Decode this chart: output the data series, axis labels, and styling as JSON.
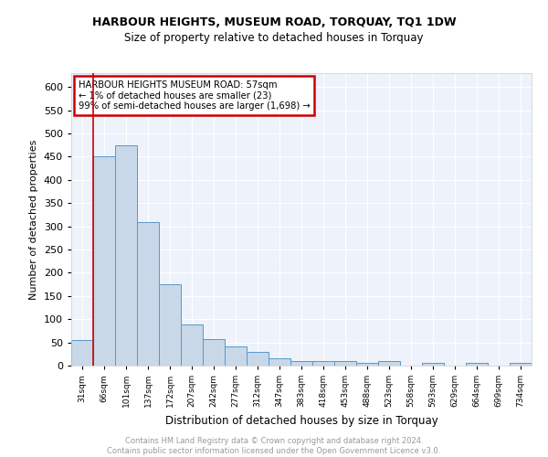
{
  "title1": "HARBOUR HEIGHTS, MUSEUM ROAD, TORQUAY, TQ1 1DW",
  "title2": "Size of property relative to detached houses in Torquay",
  "xlabel": "Distribution of detached houses by size in Torquay",
  "ylabel": "Number of detached properties",
  "bar_values": [
    55,
    450,
    475,
    310,
    175,
    88,
    58,
    42,
    30,
    15,
    10,
    10,
    10,
    5,
    10,
    0,
    5,
    0,
    5,
    0,
    5
  ],
  "x_labels": [
    "31sqm",
    "66sqm",
    "101sqm",
    "137sqm",
    "172sqm",
    "207sqm",
    "242sqm",
    "277sqm",
    "312sqm",
    "347sqm",
    "383sqm",
    "418sqm",
    "453sqm",
    "488sqm",
    "523sqm",
    "558sqm",
    "593sqm",
    "629sqm",
    "664sqm",
    "699sqm",
    "734sqm"
  ],
  "bar_color": "#c8d8e8",
  "bar_edge_color": "#5599cc",
  "background_color": "#eef2fb",
  "grid_color": "#ffffff",
  "red_line_x": 0.5,
  "annotation_text": "HARBOUR HEIGHTS MUSEUM ROAD: 57sqm\n← 1% of detached houses are smaller (23)\n99% of semi-detached houses are larger (1,698) →",
  "annotation_box_color": "#ffffff",
  "annotation_border_color": "#cc0000",
  "footer_text": "Contains HM Land Registry data © Crown copyright and database right 2024.\nContains public sector information licensed under the Open Government Licence v3.0.",
  "ylim": [
    0,
    630
  ],
  "yticks": [
    0,
    50,
    100,
    150,
    200,
    250,
    300,
    350,
    400,
    450,
    500,
    550,
    600
  ]
}
